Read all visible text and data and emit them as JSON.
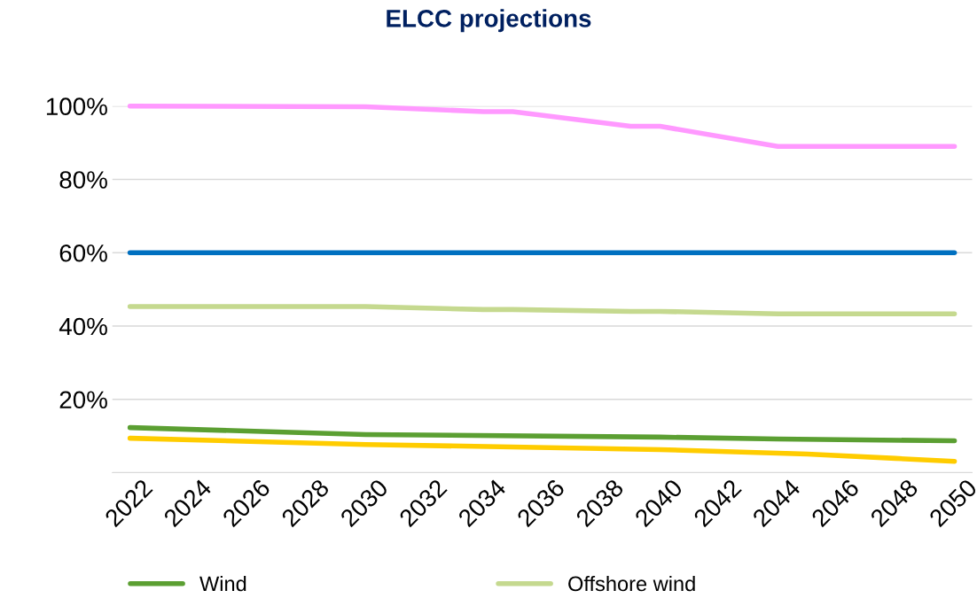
{
  "chart_data": {
    "type": "line",
    "title": "ELCC projections",
    "xlim": [
      2021.4,
      2050.6
    ],
    "xticks": [
      2022,
      2024,
      2026,
      2028,
      2030,
      2032,
      2034,
      2036,
      2038,
      2040,
      2042,
      2044,
      2046,
      2048,
      2050
    ],
    "ylim": [
      0,
      100
    ],
    "yticks": [
      {
        "value": 0,
        "label": null
      },
      {
        "value": 20,
        "label": "20%"
      },
      {
        "value": 40,
        "label": "40%"
      },
      {
        "value": 60,
        "label": "60%"
      },
      {
        "value": 80,
        "label": "80%"
      },
      {
        "value": 100,
        "label": "100%"
      }
    ],
    "grid": "y",
    "legend": "bottom",
    "marker": "none",
    "line_style": "solid",
    "series": [
      {
        "name": "Wind",
        "color": "#5b9f32",
        "x": [
          2022,
          2030,
          2040,
          2044,
          2050
        ],
        "values": [
          12.3,
          10.4,
          9.7,
          9.2,
          8.7
        ]
      },
      {
        "name": "Offshore wind",
        "color": "#c5d98f",
        "x": [
          2022,
          2030,
          2034,
          2035,
          2039,
          2040,
          2044,
          2050
        ],
        "values": [
          45.3,
          45.3,
          44.5,
          44.5,
          44,
          44,
          43.3,
          43.3
        ]
      },
      {
        "color": "#ff99ff",
        "x": [
          2022,
          2030,
          2034,
          2035,
          2039,
          2040,
          2044,
          2050
        ],
        "values": [
          100,
          99.8,
          98.5,
          98.5,
          94.5,
          94.5,
          89,
          89
        ]
      },
      {
        "color": "#0070c0",
        "x": [
          2022,
          2050
        ],
        "values": [
          60,
          60
        ]
      },
      {
        "color": "#ffcc00",
        "x": [
          2022,
          2030,
          2040,
          2045,
          2048,
          2050
        ],
        "values": [
          9.4,
          7.7,
          6.3,
          5.1,
          3.9,
          3.1
        ]
      }
    ]
  }
}
